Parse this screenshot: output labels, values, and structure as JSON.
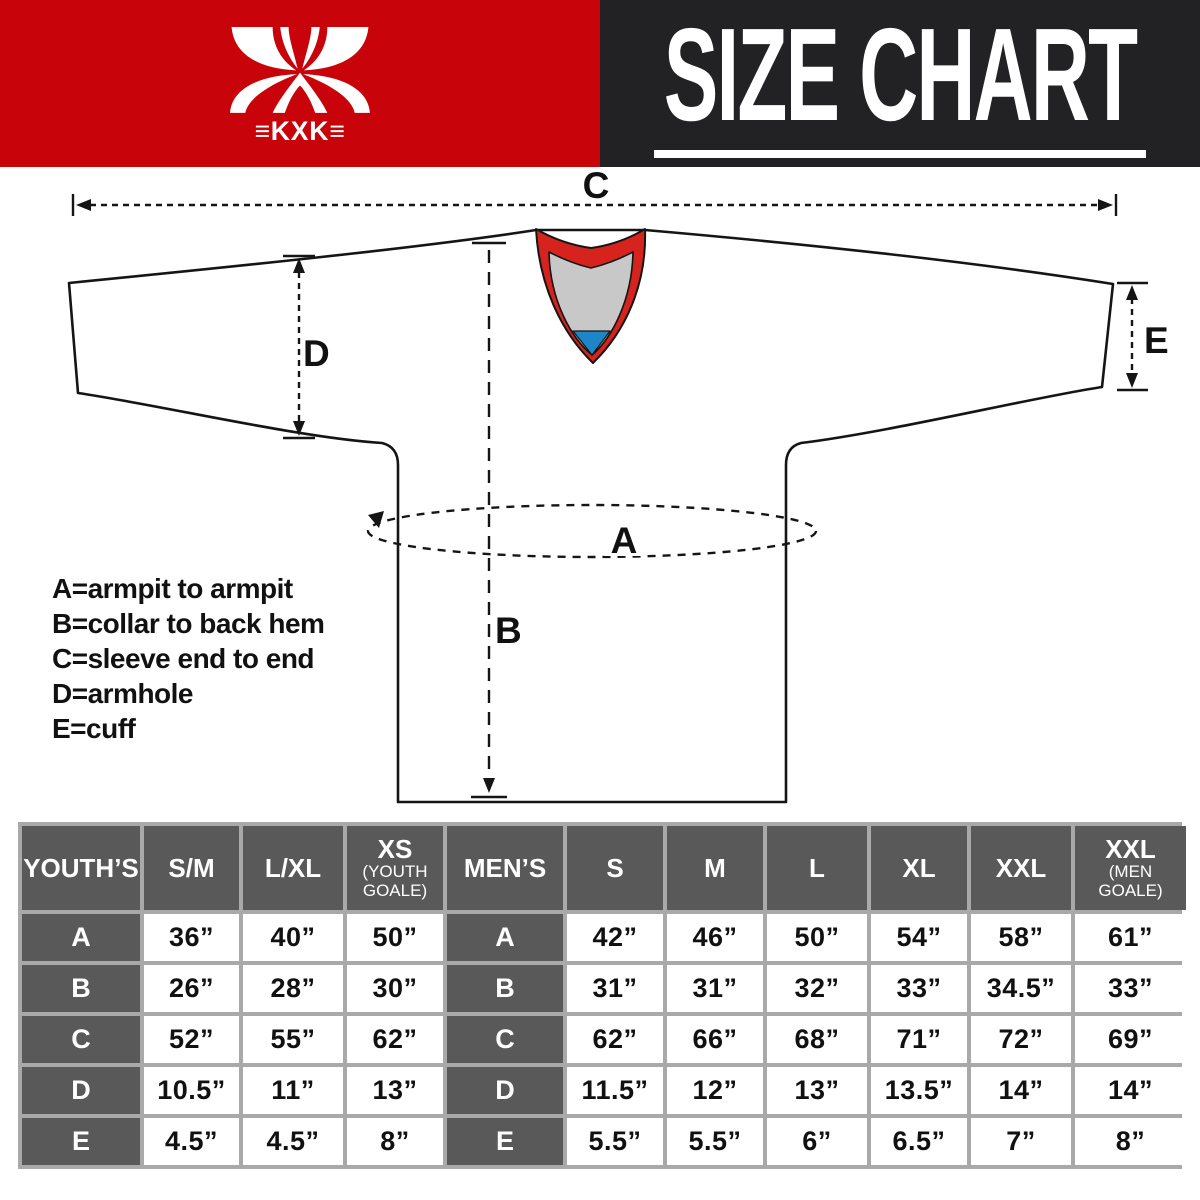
{
  "brand": {
    "logo_text": "≡KXK≡"
  },
  "header": {
    "title": "SIZE CHART"
  },
  "diagram": {
    "labels": {
      "a": "A",
      "b": "B",
      "c": "C",
      "d": "D",
      "e": "E"
    },
    "legend": {
      "lines": [
        "A=armpit to armpit",
        "B=collar to back hem",
        "C=sleeve end to end",
        "D=armhole",
        "E=cuff"
      ]
    },
    "colors": {
      "collar_red": "#d7231d",
      "collar_gray": "#c8c8c8",
      "collar_blue": "#1d86c8"
    }
  },
  "size_table": {
    "youth": {
      "label": "YOUTH’S",
      "columns": [
        {
          "main": "S/M"
        },
        {
          "main": "L/XL"
        },
        {
          "main": "XS",
          "sub": [
            "(YOUTH",
            "GOALE)"
          ]
        }
      ]
    },
    "men": {
      "label": "MEN’S",
      "columns": [
        {
          "main": "S"
        },
        {
          "main": "M"
        },
        {
          "main": "L"
        },
        {
          "main": "XL"
        },
        {
          "main": "XXL"
        },
        {
          "main": "XXL",
          "sub": [
            "(MEN",
            "GOALE)"
          ]
        }
      ]
    },
    "rows": [
      {
        "label": "A",
        "youth": [
          "36”",
          "40”",
          "50”"
        ],
        "men": [
          "42”",
          "46”",
          "50”",
          "54”",
          "58”",
          "61”"
        ]
      },
      {
        "label": "B",
        "youth": [
          "26”",
          "28”",
          "30”"
        ],
        "men": [
          "31”",
          "31”",
          "32”",
          "33”",
          "34.5”",
          "33”"
        ]
      },
      {
        "label": "C",
        "youth": [
          "52”",
          "55”",
          "62”"
        ],
        "men": [
          "62”",
          "66”",
          "68”",
          "71”",
          "72”",
          "69”"
        ]
      },
      {
        "label": "D",
        "youth": [
          "10.5”",
          "11”",
          "13”"
        ],
        "men": [
          "11.5”",
          "12”",
          "13”",
          "13.5”",
          "14”",
          "14”"
        ]
      },
      {
        "label": "E",
        "youth": [
          "4.5”",
          "4.5”",
          "8”"
        ],
        "men": [
          "5.5”",
          "5.5”",
          "6”",
          "6.5”",
          "7”",
          "8”"
        ]
      }
    ]
  }
}
